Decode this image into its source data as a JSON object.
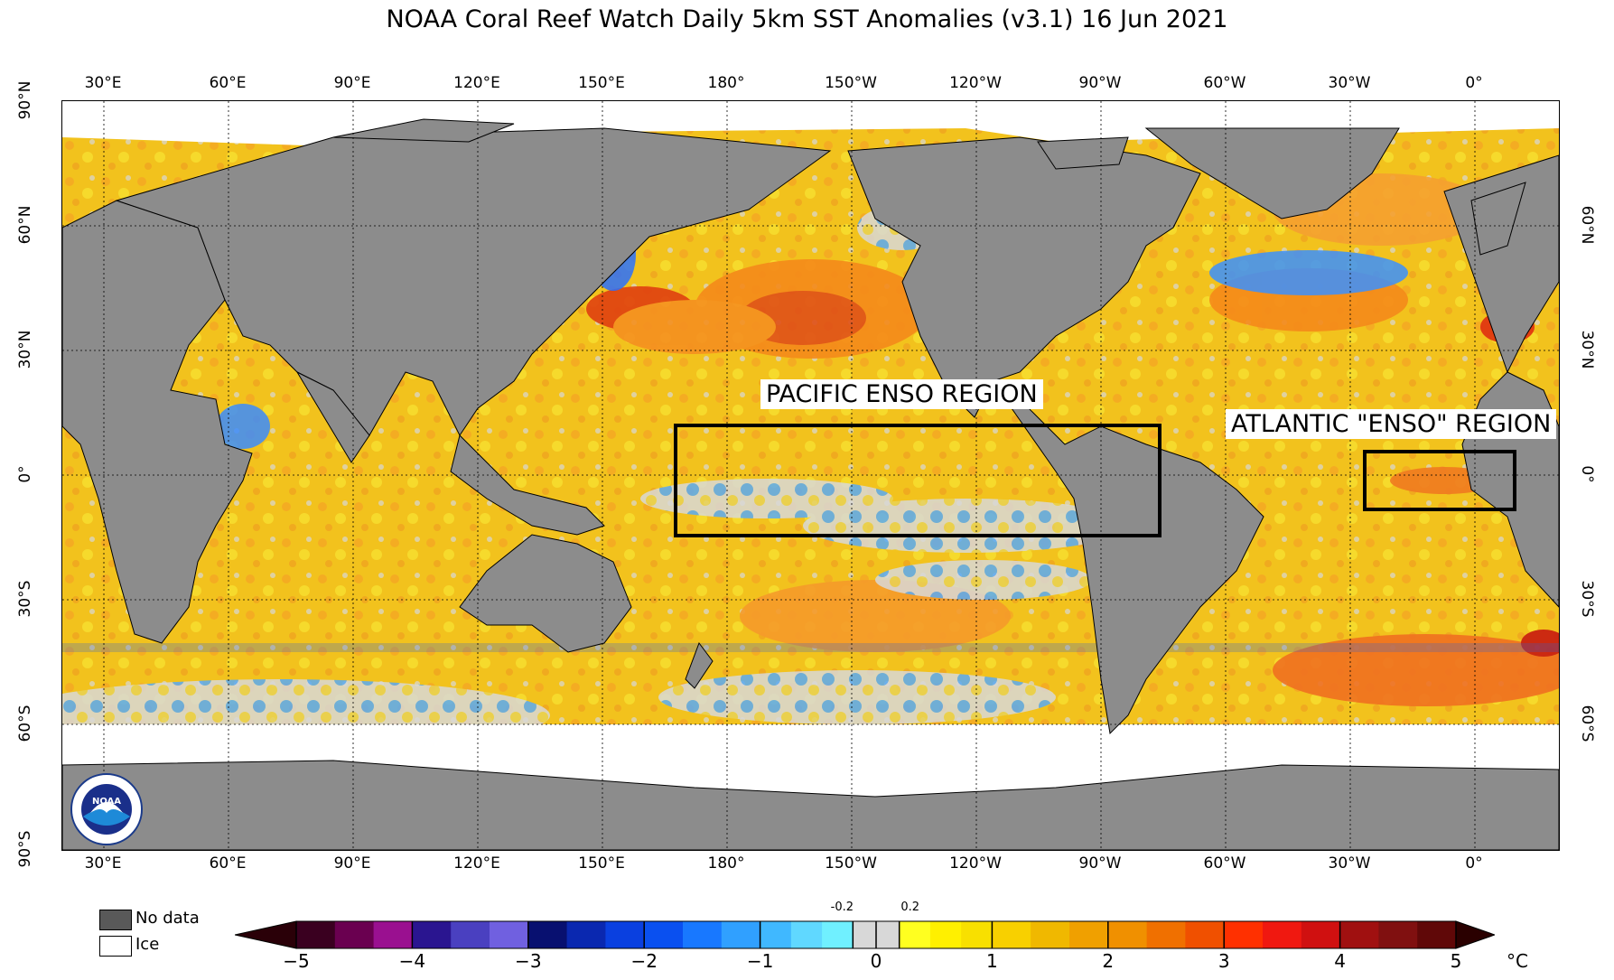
{
  "title": "NOAA Coral Reef Watch Daily 5km SST Anomalies  (v3.1)   16 Jun 2021",
  "lon_labels": [
    "30°E",
    "60°E",
    "90°E",
    "120°E",
    "150°E",
    "180°",
    "150°W",
    "120°W",
    "90°W",
    "60°W",
    "30°W",
    "0°"
  ],
  "lat_labels_left": [
    "90°N",
    "60°N",
    "30°N",
    "0°",
    "30°S",
    "60°S",
    "90°S"
  ],
  "lat_labels_right": [
    "60°N",
    "30°N",
    "0°",
    "30°S",
    "60°S"
  ],
  "annotations": {
    "pacific": "PACIFIC ENSO REGION",
    "atlantic": "ATLANTIC \"ENSO\" REGION"
  },
  "legend": {
    "no_data": "No data",
    "ice": "Ice",
    "no_data_color": "#595959",
    "ice_color": "#ffffff"
  },
  "colorbar": {
    "ticks": [
      "−5",
      "−4",
      "−3",
      "−2",
      "−1",
      "0",
      "1",
      "2",
      "3",
      "4",
      "5"
    ],
    "small_ticks": [
      "-0.2",
      "0.2"
    ],
    "unit": "°C",
    "colors": [
      "#3a0010",
      "#5a006b",
      "#9a0b8e",
      "#2a1fa0",
      "#5050d0",
      "#0a1680",
      "#0a3ad0",
      "#0070ff",
      "#1fa0ff",
      "#40d0f8",
      "#d8d8d8",
      "#ffff20",
      "#f8d000",
      "#f0a800",
      "#f07800",
      "#ff3c00",
      "#e01010",
      "#8a1010",
      "#3a0000"
    ]
  },
  "colors": {
    "land": "#8c8c8c",
    "ocean_base": "#f2c21d",
    "warm": "#f58a1a",
    "hot": "#e03a10",
    "cool": "#3aa0ff",
    "neutral": "#d8d8d8"
  }
}
